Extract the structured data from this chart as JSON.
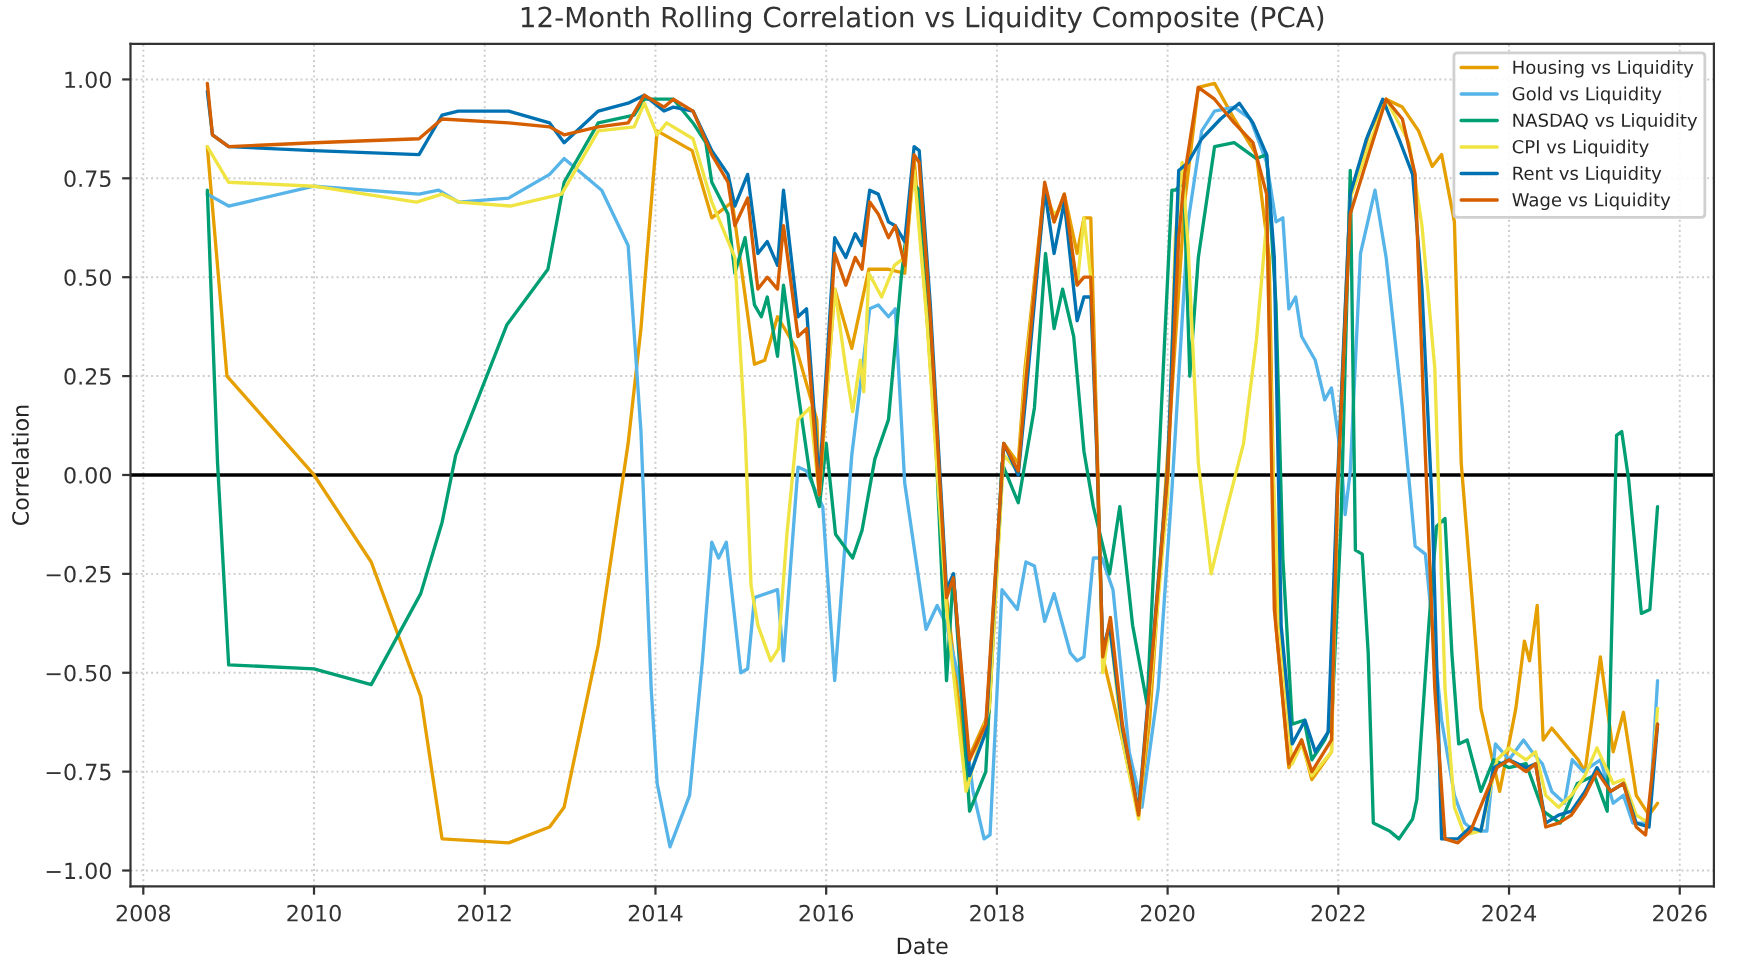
{
  "chart_data": {
    "type": "line",
    "title": "12-Month Rolling Correlation vs Liquidity Composite (PCA)",
    "xlabel": "Date",
    "ylabel": "Correlation",
    "xlim": [
      2007.85,
      2026.4
    ],
    "xticks": [
      2008,
      2010,
      2012,
      2014,
      2016,
      2018,
      2020,
      2022,
      2024,
      2026
    ],
    "ylim": [
      -1.04,
      1.09
    ],
    "yticks": [
      {
        "value": -1.0,
        "label": "−1.00"
      },
      {
        "value": -0.75,
        "label": "−0.75"
      },
      {
        "value": -0.5,
        "label": "−0.50"
      },
      {
        "value": -0.25,
        "label": "−0.25"
      },
      {
        "value": 0,
        "label": "0.00"
      },
      {
        "value": 0.25,
        "label": "0.25"
      },
      {
        "value": 0.5,
        "label": "0.50"
      },
      {
        "value": 0.75,
        "label": "0.75"
      },
      {
        "value": 1.0,
        "label": "1.00"
      }
    ],
    "grid": true,
    "legend": "top right",
    "line_style": "solid",
    "marker": "none",
    "ref_lines": [
      {
        "axis": "y",
        "value": 0,
        "color": "#000000",
        "line_style": "solid"
      }
    ],
    "series": [
      {
        "name": "Housing vs Liquidity",
        "color": "#e69f00",
        "x": [
          2008.75,
          2008.98,
          2010.0,
          2010.67,
          2011.25,
          2011.5,
          2012.28,
          2012.76,
          2012.93,
          2013.33,
          2013.68,
          2013.83,
          2014.02,
          2014.43,
          2014.66,
          2014.9,
          2015.16,
          2015.28,
          2015.43,
          2015.65,
          2015.89,
          2015.92,
          2016.1,
          2016.3,
          2016.5,
          2016.73,
          2016.92,
          2017.03,
          2017.18,
          2017.41,
          2017.64,
          2017.91,
          2018.08,
          2018.25,
          2018.33,
          2018.56,
          2018.67,
          2018.79,
          2018.94,
          2019.02,
          2019.1,
          2019.17,
          2019.24,
          2019.47,
          2019.66,
          2019.79,
          2020.0,
          2020.2,
          2020.36,
          2020.55,
          2020.78,
          2021.04,
          2021.19,
          2021.27,
          2021.42,
          2021.57,
          2021.69,
          2021.92,
          2021.99,
          2022.14,
          2022.37,
          2022.56,
          2022.75,
          2022.94,
          2023.1,
          2023.21,
          2023.36,
          2023.44,
          2023.67,
          2023.89,
          2024.08,
          2024.18,
          2024.24,
          2024.33,
          2024.4,
          2024.5,
          2024.81,
          2024.89,
          2025.07,
          2025.22,
          2025.34,
          2025.49,
          2025.64,
          2025.74
        ],
        "values": [
          0.83,
          0.25,
          0.0,
          -0.22,
          -0.56,
          -0.92,
          -0.93,
          -0.89,
          -0.84,
          -0.43,
          0.08,
          0.37,
          0.87,
          0.82,
          0.65,
          0.69,
          0.28,
          0.29,
          0.4,
          0.32,
          0.14,
          -0.04,
          0.47,
          0.32,
          0.52,
          0.52,
          0.51,
          0.8,
          0.4,
          -0.31,
          -0.73,
          -0.6,
          0.08,
          0.03,
          0.27,
          0.73,
          0.64,
          0.71,
          0.56,
          0.65,
          0.65,
          0.11,
          -0.46,
          -0.67,
          -0.86,
          -0.62,
          0.05,
          0.69,
          0.98,
          0.99,
          0.9,
          0.81,
          0.55,
          -0.38,
          -0.74,
          -0.67,
          -0.77,
          -0.7,
          -0.05,
          0.71,
          0.87,
          0.95,
          0.93,
          0.87,
          0.78,
          0.81,
          0.64,
          0.03,
          -0.59,
          -0.8,
          -0.59,
          -0.42,
          -0.47,
          -0.33,
          -0.67,
          -0.64,
          -0.72,
          -0.75,
          -0.46,
          -0.7,
          -0.6,
          -0.81,
          -0.86,
          -0.83
        ]
      },
      {
        "name": "Gold vs Liquidity",
        "color": "#56b4e9",
        "x": [
          2008.75,
          2009.0,
          2010.0,
          2011.23,
          2011.46,
          2011.69,
          2012.28,
          2012.76,
          2012.93,
          2013.37,
          2013.68,
          2013.83,
          2013.95,
          2014.02,
          2014.17,
          2014.4,
          2014.55,
          2014.66,
          2014.74,
          2014.83,
          2015.0,
          2015.08,
          2015.16,
          2015.43,
          2015.5,
          2015.67,
          2015.77,
          2015.96,
          2016.1,
          2016.3,
          2016.51,
          2016.61,
          2016.73,
          2016.81,
          2016.92,
          2017.17,
          2017.3,
          2017.41,
          2017.56,
          2017.72,
          2017.85,
          2017.92,
          2018.06,
          2018.24,
          2018.34,
          2018.44,
          2018.56,
          2018.67,
          2018.86,
          2018.94,
          2019.02,
          2019.13,
          2019.23,
          2019.36,
          2019.55,
          2019.7,
          2019.89,
          2020.05,
          2020.24,
          2020.4,
          2020.55,
          2020.78,
          2020.97,
          2021.16,
          2021.27,
          2021.35,
          2021.42,
          2021.5,
          2021.57,
          2021.73,
          2021.84,
          2021.92,
          2022.03,
          2022.08,
          2022.14,
          2022.26,
          2022.43,
          2022.56,
          2022.75,
          2022.9,
          2023.02,
          2023.21,
          2023.36,
          2023.48,
          2023.59,
          2023.74,
          2023.84,
          2024.0,
          2024.17,
          2024.27,
          2024.39,
          2024.5,
          2024.65,
          2024.74,
          2024.87,
          2025.07,
          2025.22,
          2025.34,
          2025.45,
          2025.64,
          2025.74
        ],
        "values": [
          0.71,
          0.68,
          0.73,
          0.71,
          0.72,
          0.69,
          0.7,
          0.76,
          0.8,
          0.72,
          0.58,
          0.11,
          -0.54,
          -0.78,
          -0.94,
          -0.81,
          -0.47,
          -0.17,
          -0.21,
          -0.17,
          -0.5,
          -0.49,
          -0.31,
          -0.29,
          -0.47,
          0.02,
          0.01,
          -0.08,
          -0.52,
          0.05,
          0.42,
          0.43,
          0.4,
          0.42,
          -0.02,
          -0.39,
          -0.33,
          -0.38,
          -0.52,
          -0.8,
          -0.92,
          -0.91,
          -0.29,
          -0.34,
          -0.22,
          -0.23,
          -0.37,
          -0.3,
          -0.45,
          -0.47,
          -0.46,
          -0.21,
          -0.21,
          -0.29,
          -0.7,
          -0.84,
          -0.54,
          -0.04,
          0.64,
          0.87,
          0.92,
          0.93,
          0.9,
          0.79,
          0.64,
          0.65,
          0.42,
          0.45,
          0.35,
          0.29,
          0.19,
          0.22,
          0.05,
          -0.1,
          0.01,
          0.56,
          0.72,
          0.55,
          0.17,
          -0.18,
          -0.2,
          -0.62,
          -0.81,
          -0.88,
          -0.9,
          -0.9,
          -0.68,
          -0.72,
          -0.67,
          -0.7,
          -0.73,
          -0.8,
          -0.83,
          -0.72,
          -0.75,
          -0.72,
          -0.83,
          -0.81,
          -0.88,
          -0.88,
          -0.52
        ]
      },
      {
        "name": "NASDAQ vs Liquidity",
        "color": "#009e73",
        "x": [
          2008.75,
          2008.87,
          2009.0,
          2010.0,
          2010.67,
          2011.25,
          2011.5,
          2011.66,
          2012.26,
          2012.74,
          2012.93,
          2013.33,
          2013.75,
          2013.87,
          2014.21,
          2014.44,
          2014.59,
          2014.66,
          2014.85,
          2014.93,
          2015.05,
          2015.16,
          2015.24,
          2015.31,
          2015.43,
          2015.5,
          2015.67,
          2015.81,
          2015.92,
          2016.0,
          2016.11,
          2016.31,
          2016.42,
          2016.57,
          2016.73,
          2016.88,
          2017.01,
          2017.09,
          2017.22,
          2017.41,
          2017.49,
          2017.68,
          2017.87,
          2018.06,
          2018.25,
          2018.44,
          2018.57,
          2018.67,
          2018.77,
          2018.9,
          2019.02,
          2019.13,
          2019.32,
          2019.44,
          2019.59,
          2019.76,
          2020.05,
          2020.09,
          2020.19,
          2020.26,
          2020.36,
          2020.55,
          2020.78,
          2020.91,
          2021.04,
          2021.16,
          2021.27,
          2021.35,
          2021.46,
          2021.6,
          2021.69,
          2021.84,
          2021.92,
          2022.03,
          2022.14,
          2022.2,
          2022.28,
          2022.35,
          2022.41,
          2022.6,
          2022.71,
          2022.87,
          2022.92,
          2023.06,
          2023.15,
          2023.25,
          2023.33,
          2023.41,
          2023.51,
          2023.67,
          2023.82,
          2024.0,
          2024.2,
          2024.4,
          2024.6,
          2024.8,
          2025.0,
          2025.15,
          2025.26,
          2025.32,
          2025.4,
          2025.55,
          2025.65,
          2025.74
        ],
        "values": [
          0.72,
          0.03,
          -0.48,
          -0.49,
          -0.53,
          -0.3,
          -0.12,
          0.05,
          0.38,
          0.52,
          0.74,
          0.89,
          0.91,
          0.95,
          0.95,
          0.89,
          0.84,
          0.74,
          0.66,
          0.51,
          0.6,
          0.43,
          0.4,
          0.45,
          0.3,
          0.48,
          0.21,
          0.0,
          -0.08,
          0.08,
          -0.15,
          -0.21,
          -0.14,
          0.04,
          0.14,
          0.5,
          0.74,
          0.72,
          0.39,
          -0.52,
          -0.25,
          -0.85,
          -0.75,
          0.03,
          -0.07,
          0.17,
          0.56,
          0.37,
          0.47,
          0.35,
          0.06,
          -0.08,
          -0.25,
          -0.08,
          -0.38,
          -0.58,
          0.72,
          0.72,
          0.74,
          0.25,
          0.55,
          0.83,
          0.84,
          0.82,
          0.8,
          0.81,
          0.43,
          -0.21,
          -0.63,
          -0.62,
          -0.72,
          -0.67,
          -0.63,
          -0.13,
          0.77,
          -0.19,
          -0.2,
          -0.45,
          -0.88,
          -0.9,
          -0.92,
          -0.87,
          -0.82,
          -0.38,
          -0.13,
          -0.11,
          -0.45,
          -0.68,
          -0.67,
          -0.8,
          -0.72,
          -0.74,
          -0.73,
          -0.85,
          -0.88,
          -0.78,
          -0.76,
          -0.85,
          0.1,
          0.11,
          -0.01,
          -0.35,
          -0.34,
          -0.08
        ]
      },
      {
        "name": "CPI vs Liquidity",
        "color": "#f0e442",
        "x": [
          2008.75,
          2009.0,
          2010.0,
          2011.2,
          2011.5,
          2011.7,
          2012.3,
          2012.9,
          2013.33,
          2013.75,
          2013.87,
          2014.02,
          2014.13,
          2014.44,
          2014.66,
          2014.93,
          2015.05,
          2015.12,
          2015.2,
          2015.35,
          2015.44,
          2015.54,
          2015.67,
          2015.81,
          2015.92,
          2016.1,
          2016.23,
          2016.31,
          2016.4,
          2016.44,
          2016.5,
          2016.65,
          2016.8,
          2016.92,
          2017.03,
          2017.18,
          2017.41,
          2017.64,
          2017.91,
          2018.08,
          2018.25,
          2018.34,
          2018.56,
          2018.67,
          2018.79,
          2018.94,
          2019.02,
          2019.1,
          2019.17,
          2019.24,
          2019.32,
          2019.47,
          2019.66,
          2020.0,
          2020.09,
          2020.17,
          2020.24,
          2020.36,
          2020.51,
          2020.7,
          2020.89,
          2021.04,
          2021.16,
          2021.23,
          2021.31,
          2021.46,
          2021.57,
          2021.69,
          2021.92,
          2021.99,
          2022.14,
          2022.37,
          2022.56,
          2022.83,
          2022.98,
          2023.13,
          2023.25,
          2023.36,
          2023.48,
          2023.67,
          2023.86,
          2024.0,
          2024.2,
          2024.31,
          2024.43,
          2024.58,
          2024.73,
          2024.89,
          2025.03,
          2025.22,
          2025.34,
          2025.49,
          2025.64,
          2025.74
        ],
        "values": [
          0.83,
          0.74,
          0.73,
          0.69,
          0.71,
          0.69,
          0.68,
          0.71,
          0.87,
          0.88,
          0.94,
          0.86,
          0.89,
          0.85,
          0.69,
          0.55,
          0.11,
          -0.28,
          -0.38,
          -0.47,
          -0.44,
          -0.15,
          0.14,
          0.17,
          -0.05,
          0.47,
          0.27,
          0.16,
          0.29,
          0.21,
          0.51,
          0.45,
          0.53,
          0.55,
          0.77,
          0.39,
          -0.34,
          -0.8,
          -0.59,
          0.05,
          0.01,
          0.27,
          0.71,
          0.66,
          0.68,
          0.48,
          0.65,
          0.5,
          0.08,
          -0.5,
          -0.38,
          -0.67,
          -0.87,
          -0.05,
          0.6,
          0.79,
          0.58,
          0.03,
          -0.25,
          -0.08,
          0.08,
          0.34,
          0.64,
          0.05,
          -0.38,
          -0.73,
          -0.68,
          -0.76,
          -0.7,
          -0.05,
          0.7,
          0.84,
          0.95,
          0.84,
          0.63,
          0.27,
          -0.54,
          -0.84,
          -0.91,
          -0.9,
          -0.72,
          -0.69,
          -0.72,
          -0.7,
          -0.81,
          -0.84,
          -0.81,
          -0.76,
          -0.69,
          -0.78,
          -0.77,
          -0.86,
          -0.88,
          -0.59
        ]
      },
      {
        "name": "Rent vs Liquidity",
        "color": "#0072b2",
        "x": [
          2008.75,
          2008.81,
          2009.0,
          2010.0,
          2011.23,
          2011.5,
          2011.69,
          2012.28,
          2012.76,
          2012.93,
          2013.33,
          2013.68,
          2013.87,
          2014.1,
          2014.21,
          2014.44,
          2014.66,
          2014.85,
          2014.93,
          2015.08,
          2015.2,
          2015.31,
          2015.43,
          2015.5,
          2015.67,
          2015.77,
          2015.92,
          2016.1,
          2016.23,
          2016.34,
          2016.42,
          2016.51,
          2016.61,
          2016.73,
          2016.81,
          2016.92,
          2017.03,
          2017.09,
          2017.22,
          2017.41,
          2017.49,
          2017.68,
          2017.87,
          2018.08,
          2018.25,
          2018.34,
          2018.56,
          2018.67,
          2018.79,
          2018.94,
          2019.02,
          2019.1,
          2019.17,
          2019.24,
          2019.32,
          2019.47,
          2019.66,
          2020.0,
          2020.13,
          2020.24,
          2020.4,
          2020.62,
          2020.84,
          2021.0,
          2021.16,
          2021.25,
          2021.33,
          2021.46,
          2021.61,
          2021.73,
          2021.88,
          2021.99,
          2022.14,
          2022.33,
          2022.52,
          2022.71,
          2022.87,
          2022.98,
          2023.1,
          2023.21,
          2023.4,
          2023.55,
          2023.67,
          2023.82,
          2024.0,
          2024.2,
          2024.31,
          2024.43,
          2024.58,
          2024.73,
          2024.89,
          2025.03,
          2025.19,
          2025.34,
          2025.49,
          2025.64,
          2025.74
        ],
        "values": [
          0.97,
          0.86,
          0.83,
          0.82,
          0.81,
          0.91,
          0.92,
          0.92,
          0.89,
          0.84,
          0.92,
          0.94,
          0.96,
          0.92,
          0.93,
          0.92,
          0.82,
          0.76,
          0.68,
          0.76,
          0.56,
          0.59,
          0.53,
          0.72,
          0.4,
          0.42,
          -0.02,
          0.6,
          0.55,
          0.61,
          0.58,
          0.72,
          0.71,
          0.64,
          0.63,
          0.59,
          0.83,
          0.82,
          0.43,
          -0.29,
          -0.25,
          -0.76,
          -0.65,
          0.08,
          0.0,
          0.2,
          0.72,
          0.56,
          0.69,
          0.39,
          0.45,
          0.45,
          0.06,
          -0.44,
          -0.38,
          -0.64,
          -0.85,
          0.01,
          0.77,
          0.79,
          0.85,
          0.9,
          0.94,
          0.89,
          0.81,
          0.55,
          -0.38,
          -0.68,
          -0.62,
          -0.7,
          -0.65,
          -0.02,
          0.71,
          0.85,
          0.95,
          0.85,
          0.76,
          0.47,
          -0.08,
          -0.92,
          -0.92,
          -0.89,
          -0.9,
          -0.74,
          -0.72,
          -0.74,
          -0.73,
          -0.88,
          -0.86,
          -0.85,
          -0.8,
          -0.74,
          -0.8,
          -0.78,
          -0.88,
          -0.89,
          -0.63
        ]
      },
      {
        "name": "Wage vs Liquidity",
        "color": "#d55e00",
        "x": [
          2008.75,
          2008.81,
          2009.0,
          2010.0,
          2011.23,
          2011.5,
          2012.28,
          2012.76,
          2012.93,
          2013.33,
          2013.68,
          2013.87,
          2014.1,
          2014.21,
          2014.44,
          2014.66,
          2014.85,
          2014.93,
          2015.08,
          2015.2,
          2015.31,
          2015.43,
          2015.5,
          2015.67,
          2015.77,
          2015.92,
          2016.1,
          2016.23,
          2016.34,
          2016.42,
          2016.51,
          2016.61,
          2016.73,
          2016.81,
          2016.92,
          2017.03,
          2017.09,
          2017.22,
          2017.41,
          2017.49,
          2017.68,
          2017.87,
          2018.08,
          2018.25,
          2018.34,
          2018.56,
          2018.67,
          2018.79,
          2018.94,
          2019.02,
          2019.1,
          2019.17,
          2019.24,
          2019.33,
          2019.47,
          2019.66,
          2020.0,
          2020.13,
          2020.2,
          2020.36,
          2020.55,
          2020.78,
          2021.0,
          2021.16,
          2021.25,
          2021.42,
          2021.57,
          2021.69,
          2021.92,
          2021.99,
          2022.14,
          2022.37,
          2022.56,
          2022.75,
          2022.9,
          2023.02,
          2023.13,
          2023.25,
          2023.4,
          2023.55,
          2023.74,
          2023.86,
          2024.0,
          2024.2,
          2024.31,
          2024.43,
          2024.58,
          2024.73,
          2024.89,
          2025.03,
          2025.19,
          2025.34,
          2025.49,
          2025.6,
          2025.74
        ],
        "values": [
          0.99,
          0.86,
          0.83,
          0.84,
          0.85,
          0.9,
          0.89,
          0.88,
          0.86,
          0.88,
          0.89,
          0.96,
          0.93,
          0.95,
          0.92,
          0.81,
          0.74,
          0.63,
          0.7,
          0.47,
          0.5,
          0.47,
          0.63,
          0.35,
          0.37,
          -0.05,
          0.56,
          0.48,
          0.55,
          0.52,
          0.69,
          0.66,
          0.6,
          0.63,
          0.53,
          0.81,
          0.79,
          0.4,
          -0.31,
          -0.26,
          -0.72,
          -0.63,
          0.08,
          0.01,
          0.24,
          0.74,
          0.64,
          0.71,
          0.48,
          0.5,
          0.5,
          0.08,
          -0.46,
          -0.36,
          -0.63,
          -0.86,
          0.0,
          0.6,
          0.76,
          0.98,
          0.95,
          0.89,
          0.84,
          0.71,
          -0.34,
          -0.73,
          -0.67,
          -0.75,
          -0.67,
          -0.04,
          0.66,
          0.82,
          0.95,
          0.9,
          0.76,
          0.05,
          -0.54,
          -0.92,
          -0.93,
          -0.9,
          -0.8,
          -0.74,
          -0.72,
          -0.75,
          -0.73,
          -0.89,
          -0.88,
          -0.86,
          -0.81,
          -0.75,
          -0.8,
          -0.78,
          -0.89,
          -0.91,
          -0.63
        ]
      }
    ]
  }
}
